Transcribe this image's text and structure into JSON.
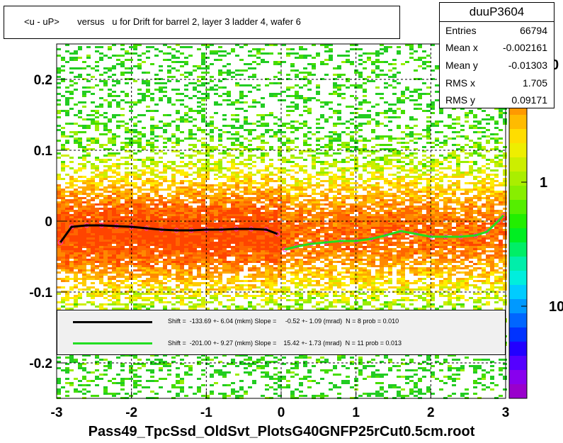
{
  "title": "<u - uP>       versus   u for Drift for barrel 2, layer 3 ladder 4, wafer 6",
  "stats": {
    "name": "duuP3604",
    "rows": [
      {
        "key": "Entries",
        "value": "66794"
      },
      {
        "key": "Mean x",
        "value": "-0.002161"
      },
      {
        "key": "Mean y",
        "value": "-0.01303"
      },
      {
        "key": "RMS x",
        "value": "1.705"
      },
      {
        "key": "RMS y",
        "value": "0.09171"
      }
    ]
  },
  "legend": [
    {
      "color": "#000000",
      "text": "Shift =  -133.69 +- 6.04 (mkm) Slope =     -0.52 +- 1.09 (mrad)  N = 8 prob = 0.010"
    },
    {
      "color": "#22dd22",
      "text": "Shift =  -201.00 +- 9.27 (mkm) Slope =    15.42 +- 1.73 (mrad)  N = 11 prob = 0.013"
    }
  ],
  "xlabel": "Pass49_TpcSsd_OldSvt_PlotsG40GNFP25rCut0.5cm.root",
  "colors": {
    "fit_left": "#000000",
    "fit_right": "#22dd22",
    "points": "#ff33cc"
  },
  "chart_data": {
    "type": "heatmap",
    "xlim": [
      -3,
      3
    ],
    "ylim": [
      -0.25,
      0.25
    ],
    "x_ticks": [
      "-3",
      "-2",
      "-1",
      "0",
      "1",
      "2",
      "3"
    ],
    "y_ticks": [
      "-0.2",
      "-0.1",
      "0",
      "0.1",
      "0.2"
    ],
    "colorbar_ticks": [
      "10",
      "1",
      "0"
    ],
    "grid": true,
    "series": [
      {
        "x": [
          -2.95,
          -2.8,
          -2.6,
          -2.4,
          -2.2,
          -2.0,
          -1.8,
          -1.6,
          -1.4,
          -1.2,
          -1.0,
          -0.8,
          -0.6,
          -0.4,
          -0.2,
          -0.05
        ],
        "y": [
          -0.03,
          -0.008,
          -0.006,
          -0.006,
          -0.007,
          -0.008,
          -0.01,
          -0.012,
          -0.013,
          -0.013,
          -0.012,
          -0.012,
          -0.011,
          -0.011,
          -0.012,
          -0.018
        ]
      },
      {
        "x": [
          0.05,
          0.2,
          0.4,
          0.6,
          0.8,
          1.0,
          1.2,
          1.4,
          1.6,
          1.8,
          2.0,
          2.2,
          2.4,
          2.6,
          2.75,
          2.9,
          2.97
        ],
        "y": [
          -0.04,
          -0.036,
          -0.032,
          -0.03,
          -0.028,
          -0.028,
          -0.025,
          -0.02,
          -0.014,
          -0.018,
          -0.022,
          -0.022,
          -0.022,
          -0.02,
          -0.015,
          0.0,
          0.008
        ]
      }
    ]
  }
}
